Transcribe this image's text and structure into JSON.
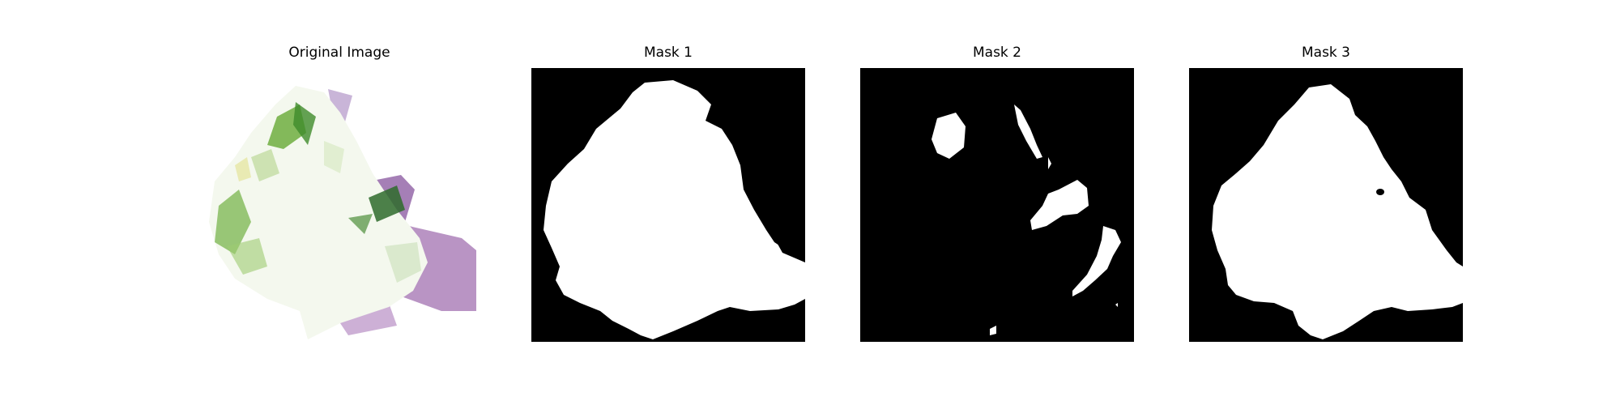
{
  "figure": {
    "panels": [
      {
        "title": "Original Image"
      },
      {
        "title": "Mask 1"
      },
      {
        "title": "Mask 2"
      },
      {
        "title": "Mask 3"
      }
    ]
  },
  "colors": {
    "mask_background": "#000000",
    "mask_foreground": "#ffffff",
    "leaf_green": "#4f9a32",
    "leaf_highlight": "#eef5e4",
    "purple_backdrop": "#b994c4"
  }
}
